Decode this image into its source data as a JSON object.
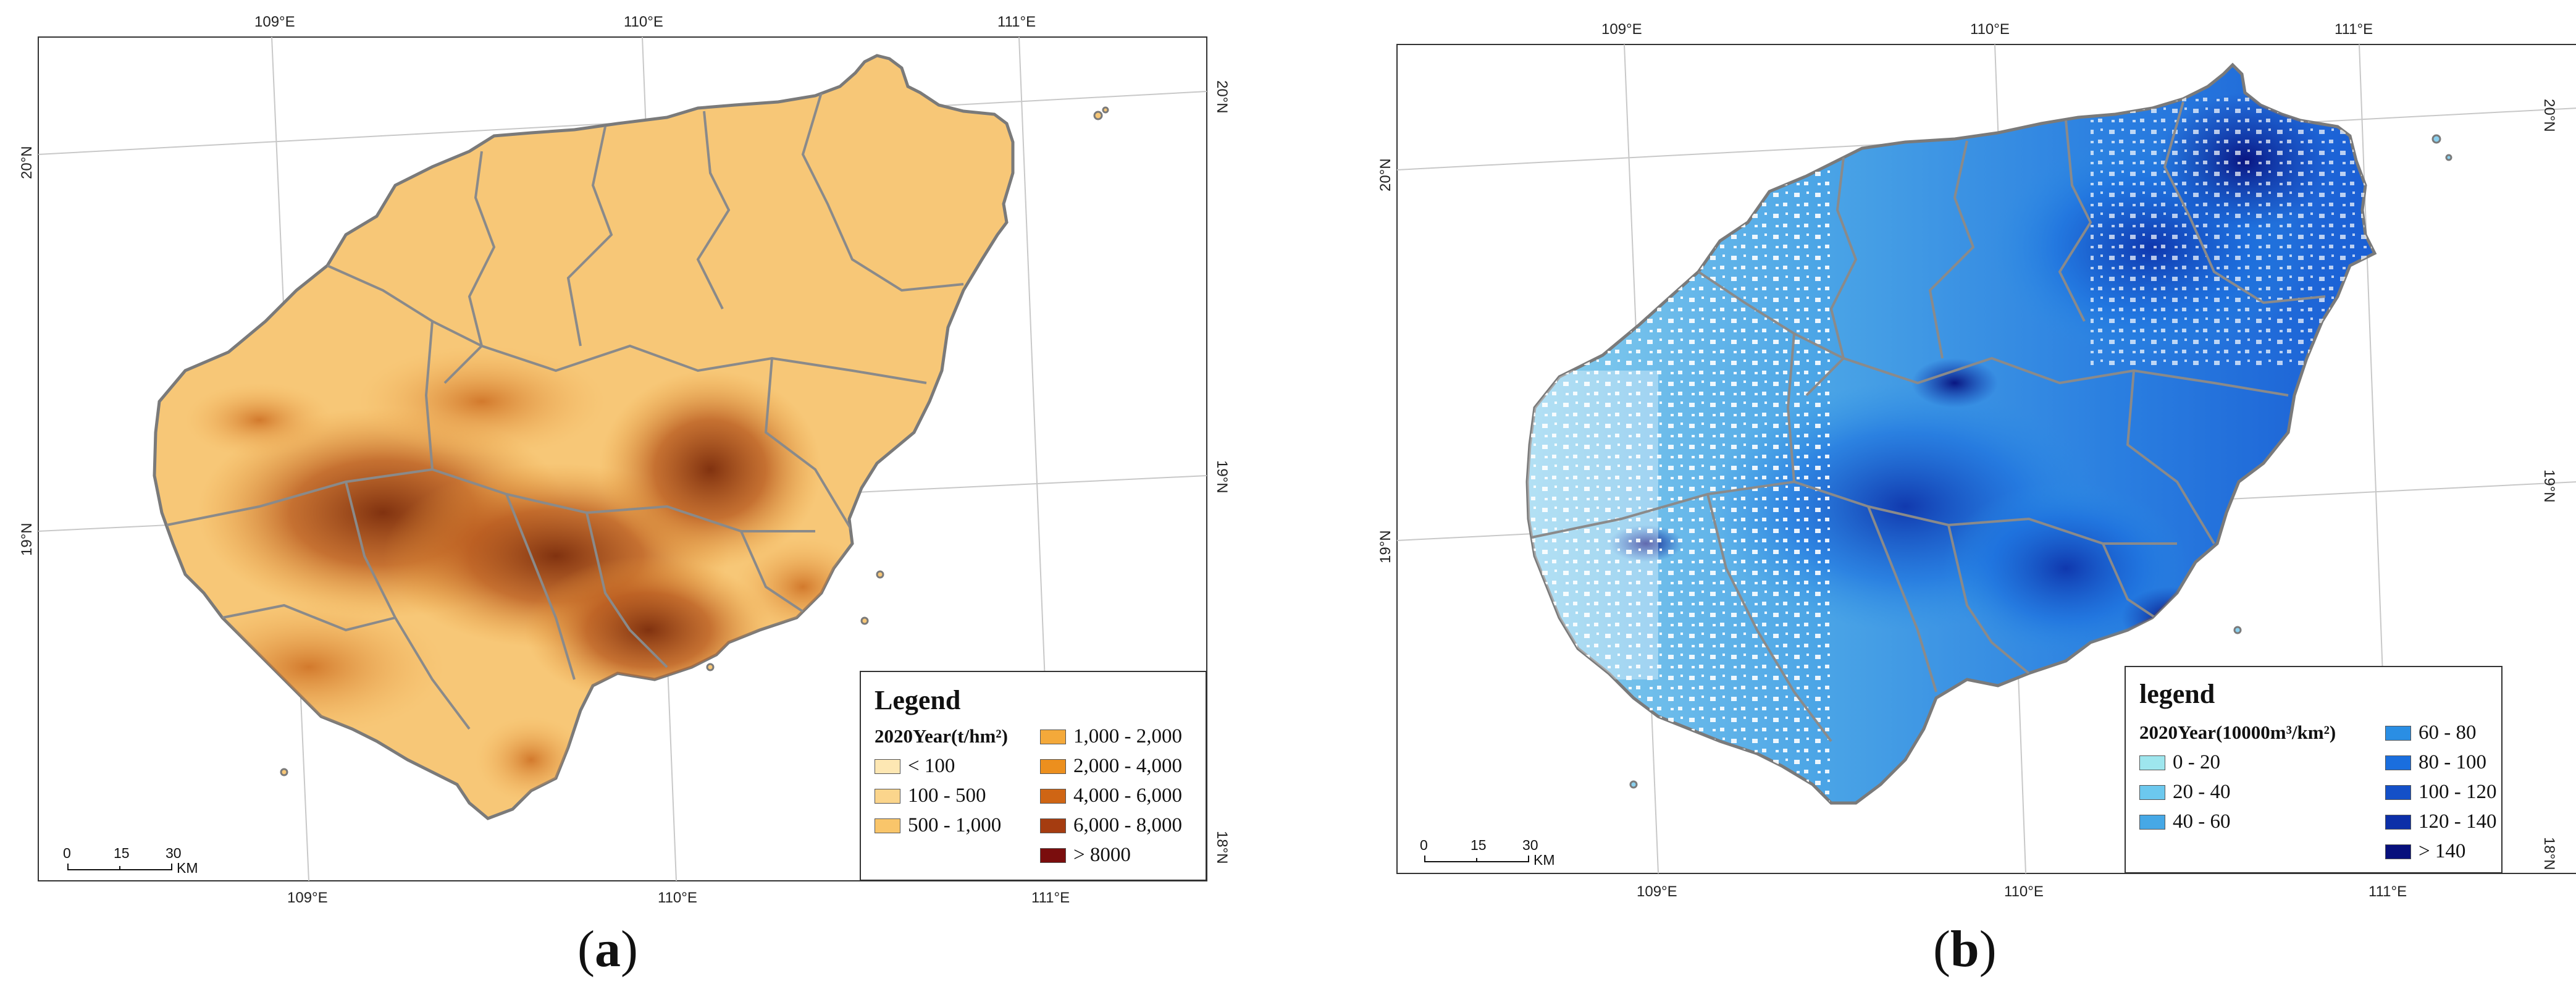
{
  "panel_a": {
    "caption": "a",
    "top_ticks": [
      "109°E",
      "110°E",
      "111°E"
    ],
    "bottom_ticks": [
      "109°E",
      "110°E",
      "111°E"
    ],
    "left_ticks": [
      "20°N",
      "19°N"
    ],
    "right_ticks": [
      "20°N",
      "19°N",
      "18°N"
    ],
    "legend": {
      "title": "Legend",
      "subtitle": "2020Year(t/hm²)",
      "items": [
        {
          "label": "< 100",
          "color": "#fde7b3"
        },
        {
          "label": "100 - 500",
          "color": "#fbd58c"
        },
        {
          "label": "500 - 1,000",
          "color": "#f9c56a"
        },
        {
          "label": "1,000 - 2,000",
          "color": "#f4a93a"
        },
        {
          "label": "2,000 - 4,000",
          "color": "#ec8f1e"
        },
        {
          "label": "4,000 - 6,000",
          "color": "#cf6514"
        },
        {
          "label": "6,000 - 8,000",
          "color": "#a53c10"
        },
        {
          "label": "> 8000",
          "color": "#7a0d0d"
        }
      ]
    },
    "scale": {
      "labels": [
        "0",
        "15",
        "30"
      ],
      "unit": "KM"
    }
  },
  "panel_b": {
    "caption": "b",
    "top_ticks": [
      "109°E",
      "110°E",
      "111°E"
    ],
    "bottom_ticks": [
      "109°E",
      "110°E",
      "111°E"
    ],
    "left_ticks": [
      "20°N",
      "19°N"
    ],
    "right_ticks": [
      "20°N",
      "19°N",
      "18°N"
    ],
    "legend": {
      "title": "legend",
      "subtitle": "2020Year(10000m³/km²)",
      "items": [
        {
          "label": "0 - 20",
          "color": "#9ee6ee"
        },
        {
          "label": "20 - 40",
          "color": "#6cc8ee"
        },
        {
          "label": "40 - 60",
          "color": "#46a8e6"
        },
        {
          "label": "60 - 80",
          "color": "#2a8ee4"
        },
        {
          "label": "80 - 100",
          "color": "#1a6ede"
        },
        {
          "label": "100 - 120",
          "color": "#1450c8"
        },
        {
          "label": "120 - 140",
          "color": "#0c2fa8"
        },
        {
          "label": "> 140",
          "color": "#07107c"
        }
      ]
    },
    "scale": {
      "labels": [
        "0",
        "15",
        "30"
      ],
      "unit": "KM"
    }
  }
}
